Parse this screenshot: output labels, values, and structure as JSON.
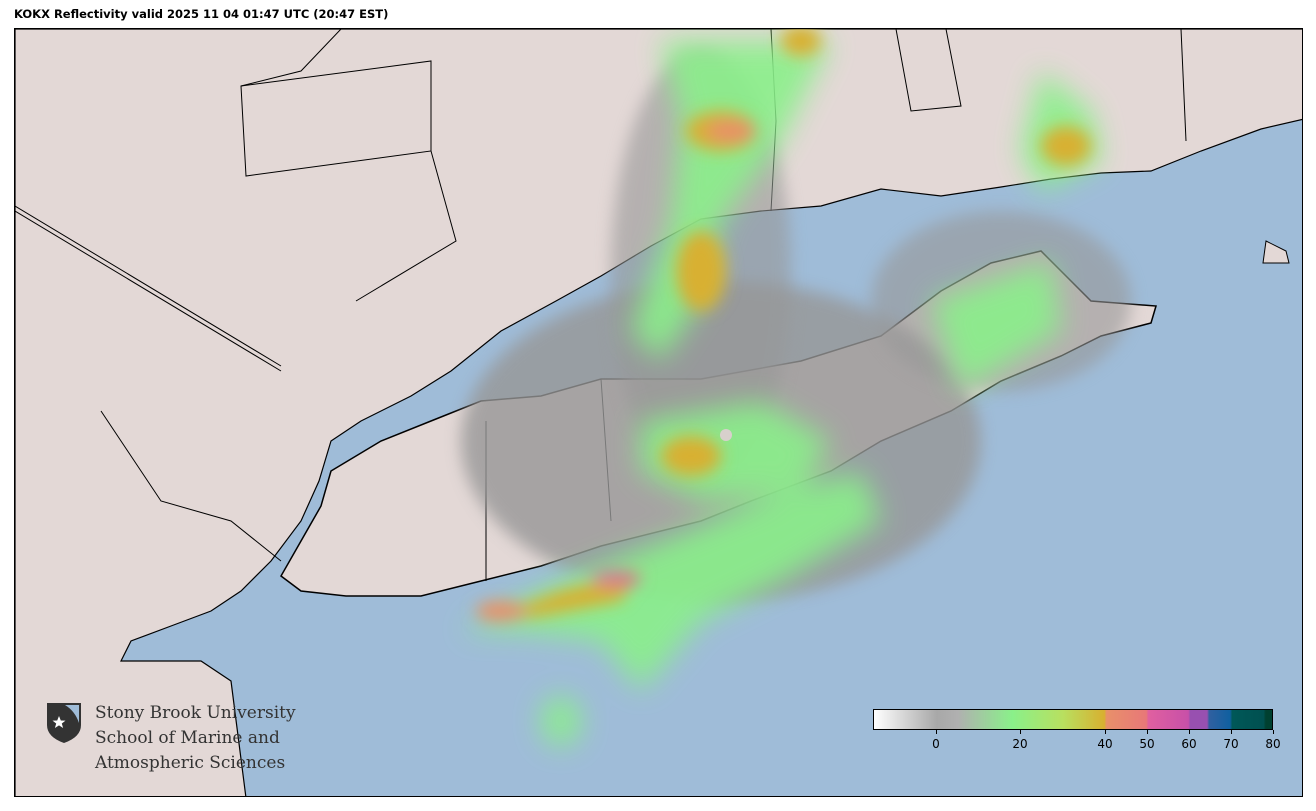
{
  "title": "KOKX Reflectivity valid 2025 11 04 01:47 UTC (20:47 EST)",
  "map": {
    "radar_site": "KOKX",
    "product": "Reflectivity",
    "water_color": "#9fbcd8",
    "land_color": "#e3d8d6"
  },
  "logo": {
    "line1": "Stony Brook University",
    "line2": "School of Marine and",
    "line3": "Atmospheric Sciences"
  },
  "colorbar": {
    "min": -15,
    "max": 80,
    "ticks": [
      "0",
      "20",
      "40",
      "50",
      "60",
      "70",
      "80"
    ],
    "tick_values": [
      0,
      20,
      40,
      50,
      60,
      70,
      80
    ],
    "stops": [
      {
        "value": -15,
        "color": "#ffffff"
      },
      {
        "value": 0,
        "color": "#a8a8a8"
      },
      {
        "value": 5,
        "color": "#b0b0b0"
      },
      {
        "value": 18,
        "color": "#8af08a"
      },
      {
        "value": 30,
        "color": "#b8e060"
      },
      {
        "value": 40,
        "color": "#d8b030"
      },
      {
        "value": 40.5,
        "color": "#e8906a"
      },
      {
        "value": 50,
        "color": "#e87878"
      },
      {
        "value": 50.5,
        "color": "#e060a0"
      },
      {
        "value": 60,
        "color": "#c850a8"
      },
      {
        "value": 60.5,
        "color": "#9850b0"
      },
      {
        "value": 64.5,
        "color": "#9850b0"
      },
      {
        "value": 65,
        "color": "#3060a0"
      },
      {
        "value": 70,
        "color": "#1060a0"
      },
      {
        "value": 70.5,
        "color": "#005858"
      },
      {
        "value": 78,
        "color": "#005050"
      },
      {
        "value": 78.5,
        "color": "#004030"
      },
      {
        "value": 80,
        "color": "#004030"
      }
    ]
  }
}
